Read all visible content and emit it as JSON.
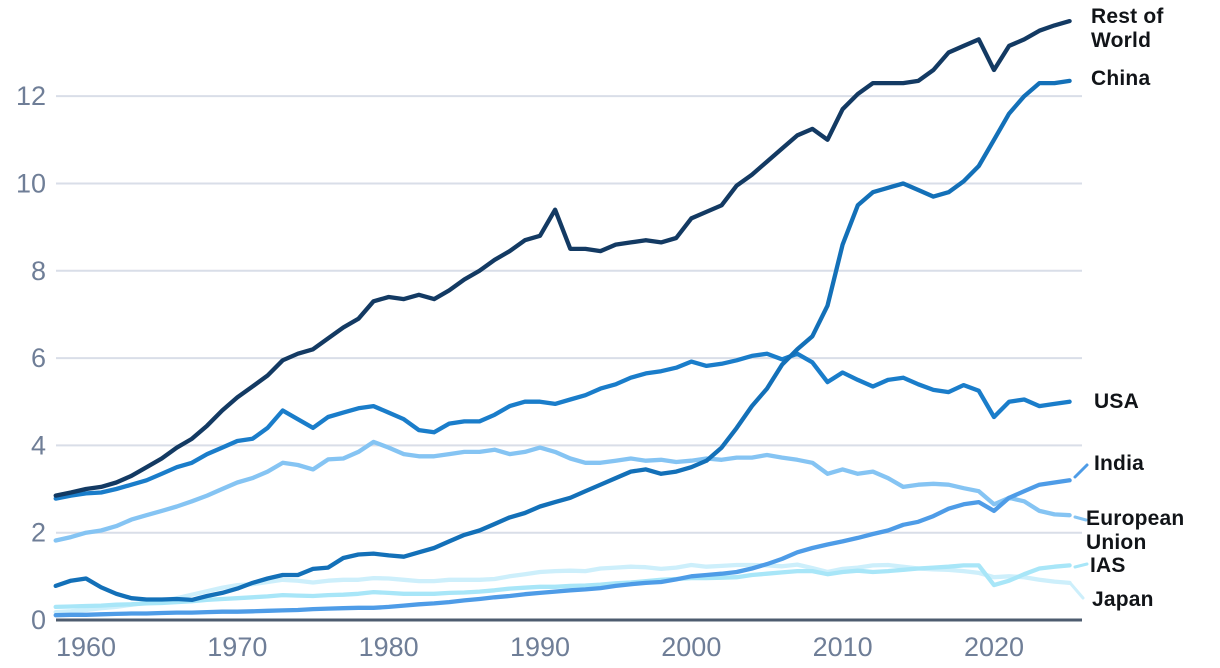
{
  "chart_data": {
    "type": "line",
    "title": "",
    "xlabel": "",
    "ylabel": "",
    "grid": "horizontal",
    "legend_position": "right-edge-labels",
    "x_ticks": [
      1960,
      1970,
      1980,
      1990,
      2000,
      2010,
      2020
    ],
    "y_ticks": [
      0,
      2,
      4,
      6,
      8,
      10,
      12
    ],
    "xlim": [
      1958,
      2025.6
    ],
    "ylim": [
      0,
      13.98
    ],
    "axis_color": "#4e5c6f",
    "gridline_color": "#d9dee8",
    "tick_label_color": "#6f7e97",
    "years": [
      1958,
      1959,
      1960,
      1961,
      1962,
      1963,
      1964,
      1965,
      1966,
      1967,
      1968,
      1969,
      1970,
      1971,
      1972,
      1973,
      1974,
      1975,
      1976,
      1977,
      1978,
      1979,
      1980,
      1981,
      1982,
      1983,
      1984,
      1985,
      1986,
      1987,
      1988,
      1989,
      1990,
      1991,
      1992,
      1993,
      1994,
      1995,
      1996,
      1997,
      1998,
      1999,
      2000,
      2001,
      2002,
      2003,
      2004,
      2005,
      2006,
      2007,
      2008,
      2009,
      2010,
      2011,
      2012,
      2013,
      2014,
      2015,
      2016,
      2017,
      2018,
      2019,
      2020,
      2021,
      2022,
      2023,
      2024,
      2025
    ],
    "series": [
      {
        "id": "rest-of-world",
        "label": "Rest of World",
        "color": "#133a63",
        "values": [
          2.85,
          2.92,
          3.0,
          3.05,
          3.15,
          3.3,
          3.5,
          3.7,
          3.95,
          4.15,
          4.45,
          4.8,
          5.1,
          5.35,
          5.6,
          5.95,
          6.1,
          6.2,
          6.45,
          6.7,
          6.9,
          7.3,
          7.4,
          7.35,
          7.45,
          7.35,
          7.55,
          7.8,
          8.0,
          8.25,
          8.45,
          8.7,
          8.8,
          9.4,
          8.5,
          8.5,
          8.45,
          8.6,
          8.65,
          8.7,
          8.65,
          8.75,
          9.2,
          9.35,
          9.5,
          9.95,
          10.2,
          10.5,
          10.8,
          11.1,
          11.25,
          11.0,
          11.7,
          12.05,
          12.3,
          12.3,
          12.3,
          12.35,
          12.6,
          13.0,
          13.15,
          13.3,
          12.6,
          13.15,
          13.3,
          13.5,
          13.62,
          13.72
        ]
      },
      {
        "id": "china",
        "label": "China",
        "color": "#1370b8",
        "values": [
          0.78,
          0.9,
          0.95,
          0.75,
          0.6,
          0.5,
          0.47,
          0.47,
          0.48,
          0.46,
          0.55,
          0.62,
          0.72,
          0.85,
          0.95,
          1.03,
          1.03,
          1.17,
          1.2,
          1.42,
          1.5,
          1.52,
          1.48,
          1.45,
          1.55,
          1.65,
          1.8,
          1.95,
          2.05,
          2.2,
          2.35,
          2.45,
          2.6,
          2.7,
          2.8,
          2.95,
          3.1,
          3.25,
          3.4,
          3.45,
          3.35,
          3.4,
          3.5,
          3.65,
          3.95,
          4.4,
          4.9,
          5.3,
          5.85,
          6.2,
          6.5,
          7.2,
          8.6,
          9.5,
          9.8,
          9.9,
          10.0,
          9.85,
          9.7,
          9.8,
          10.05,
          10.4,
          11.0,
          11.6,
          12.0,
          12.3,
          12.3,
          12.35
        ]
      },
      {
        "id": "usa",
        "label": "USA",
        "color": "#1a7dca",
        "values": [
          2.78,
          2.85,
          2.9,
          2.92,
          3.0,
          3.1,
          3.2,
          3.35,
          3.5,
          3.6,
          3.8,
          3.95,
          4.1,
          4.15,
          4.4,
          4.8,
          4.6,
          4.4,
          4.65,
          4.75,
          4.85,
          4.9,
          4.75,
          4.6,
          4.35,
          4.3,
          4.5,
          4.55,
          4.55,
          4.7,
          4.9,
          5.0,
          5.0,
          4.95,
          5.05,
          5.15,
          5.3,
          5.4,
          5.55,
          5.65,
          5.7,
          5.78,
          5.92,
          5.82,
          5.87,
          5.95,
          6.05,
          6.1,
          5.97,
          6.1,
          5.9,
          5.45,
          5.67,
          5.5,
          5.35,
          5.5,
          5.55,
          5.4,
          5.27,
          5.22,
          5.38,
          5.25,
          4.65,
          5.0,
          5.05,
          4.9,
          4.95,
          5.0
        ]
      },
      {
        "id": "india",
        "label": "India",
        "color": "#4e9ce7",
        "values": [
          0.11,
          0.12,
          0.12,
          0.13,
          0.14,
          0.15,
          0.15,
          0.16,
          0.17,
          0.17,
          0.18,
          0.19,
          0.19,
          0.2,
          0.21,
          0.22,
          0.23,
          0.25,
          0.26,
          0.27,
          0.28,
          0.28,
          0.3,
          0.33,
          0.36,
          0.38,
          0.41,
          0.45,
          0.48,
          0.52,
          0.55,
          0.59,
          0.62,
          0.65,
          0.68,
          0.7,
          0.73,
          0.78,
          0.82,
          0.85,
          0.87,
          0.93,
          1.0,
          1.03,
          1.06,
          1.1,
          1.18,
          1.28,
          1.4,
          1.55,
          1.65,
          1.73,
          1.8,
          1.88,
          1.97,
          2.05,
          2.18,
          2.25,
          2.38,
          2.55,
          2.65,
          2.7,
          2.5,
          2.8,
          2.95,
          3.1,
          3.15,
          3.2
        ]
      },
      {
        "id": "european-union",
        "label": "European Union",
        "color": "#85c4f3",
        "values": [
          1.82,
          1.9,
          2.0,
          2.05,
          2.15,
          2.3,
          2.4,
          2.5,
          2.6,
          2.72,
          2.85,
          3.0,
          3.15,
          3.25,
          3.4,
          3.6,
          3.55,
          3.45,
          3.68,
          3.7,
          3.85,
          4.08,
          3.95,
          3.8,
          3.75,
          3.75,
          3.8,
          3.85,
          3.85,
          3.9,
          3.8,
          3.85,
          3.95,
          3.85,
          3.7,
          3.6,
          3.6,
          3.65,
          3.7,
          3.65,
          3.67,
          3.62,
          3.65,
          3.7,
          3.67,
          3.72,
          3.72,
          3.78,
          3.72,
          3.67,
          3.6,
          3.35,
          3.45,
          3.35,
          3.4,
          3.25,
          3.05,
          3.1,
          3.12,
          3.1,
          3.02,
          2.95,
          2.65,
          2.8,
          2.72,
          2.5,
          2.42,
          2.4
        ]
      },
      {
        "id": "ias",
        "label": "IAS",
        "color": "#a8e6f8",
        "values": [
          0.3,
          0.31,
          0.32,
          0.33,
          0.35,
          0.36,
          0.38,
          0.39,
          0.41,
          0.43,
          0.46,
          0.48,
          0.5,
          0.52,
          0.54,
          0.57,
          0.56,
          0.55,
          0.57,
          0.58,
          0.6,
          0.64,
          0.62,
          0.6,
          0.6,
          0.6,
          0.62,
          0.63,
          0.65,
          0.68,
          0.72,
          0.74,
          0.76,
          0.76,
          0.78,
          0.79,
          0.81,
          0.84,
          0.86,
          0.89,
          0.92,
          0.94,
          0.96,
          0.96,
          0.97,
          0.98,
          1.03,
          1.06,
          1.09,
          1.12,
          1.12,
          1.05,
          1.1,
          1.13,
          1.1,
          1.12,
          1.15,
          1.18,
          1.2,
          1.22,
          1.25,
          1.25,
          0.8,
          0.9,
          1.05,
          1.18,
          1.22,
          1.25
        ]
      },
      {
        "id": "japan",
        "label": "Japan",
        "color": "#cdeffb",
        "values": [
          0.18,
          0.2,
          0.23,
          0.27,
          0.3,
          0.35,
          0.4,
          0.45,
          0.5,
          0.58,
          0.66,
          0.74,
          0.8,
          0.82,
          0.87,
          0.92,
          0.9,
          0.86,
          0.9,
          0.92,
          0.92,
          0.96,
          0.95,
          0.92,
          0.89,
          0.89,
          0.92,
          0.92,
          0.92,
          0.94,
          1.0,
          1.05,
          1.1,
          1.12,
          1.13,
          1.12,
          1.18,
          1.2,
          1.22,
          1.21,
          1.17,
          1.2,
          1.26,
          1.22,
          1.24,
          1.26,
          1.26,
          1.25,
          1.23,
          1.27,
          1.19,
          1.1,
          1.17,
          1.2,
          1.25,
          1.26,
          1.22,
          1.18,
          1.16,
          1.15,
          1.12,
          1.08,
          0.98,
          1.0,
          0.98,
          0.92,
          0.88,
          0.85
        ]
      }
    ]
  }
}
